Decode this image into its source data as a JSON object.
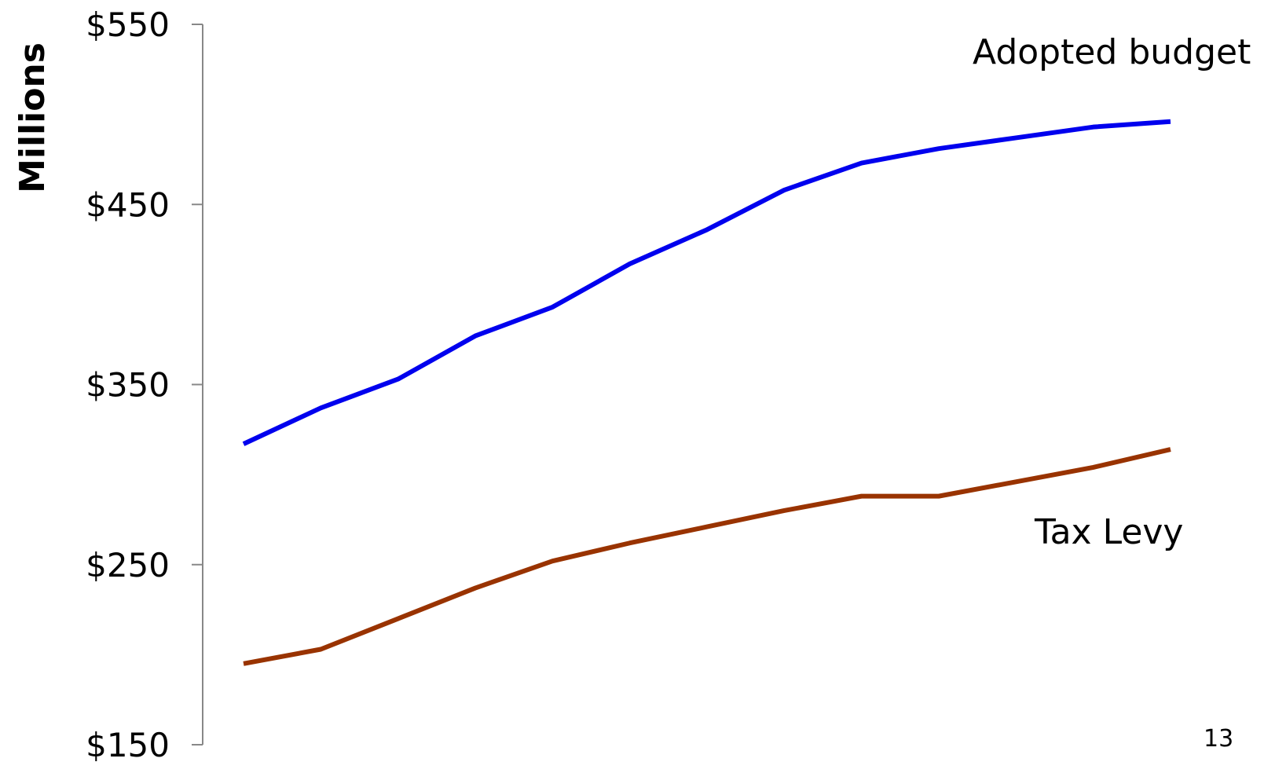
{
  "chart_data": {
    "type": "line",
    "xlabel": "",
    "ylabel": "Millions",
    "ylim": [
      150,
      550
    ],
    "yticks": [
      150,
      250,
      350,
      450,
      550
    ],
    "ytick_labels": [
      "$150",
      "$250",
      "$350",
      "$450",
      "$550"
    ],
    "grid": false,
    "x": [
      1,
      2,
      3,
      4,
      5,
      6,
      7,
      8,
      9,
      10,
      11,
      12,
      13
    ],
    "series": [
      {
        "name": "Adopted budget",
        "color": "#0000ee",
        "values": [
          317,
          337,
          353,
          377,
          393,
          417,
          436,
          458,
          473,
          481,
          487,
          493,
          496
        ]
      },
      {
        "name": "Tax Levy",
        "color": "#993300",
        "values": [
          195,
          203,
          220,
          237,
          252,
          262,
          271,
          280,
          288,
          288,
          296,
          304,
          314
        ]
      }
    ]
  },
  "page_number": "13"
}
